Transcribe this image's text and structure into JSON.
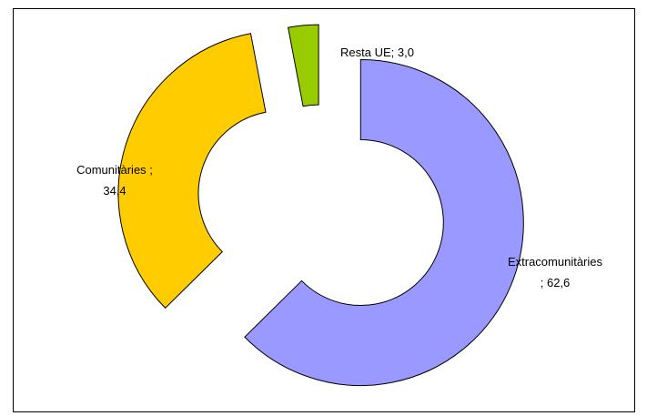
{
  "chart_data": {
    "type": "pie",
    "style": "exploded doughnut",
    "series": [
      {
        "category": "Extracomunitàries",
        "value": 62.6,
        "label_lines": [
          "Extracomunitàries",
          "; 62,6"
        ],
        "color": "#9999ff"
      },
      {
        "category": "Comunitàries",
        "value": 34.4,
        "label_lines": [
          "Comunitàries ;",
          "34,4"
        ],
        "color": "#ffcc00"
      },
      {
        "category": "Resta UE",
        "value": 3.0,
        "label_lines": [
          "Resta UE; 3,0"
        ],
        "color": "#99cc00"
      }
    ],
    "title": "",
    "legend": "none"
  }
}
